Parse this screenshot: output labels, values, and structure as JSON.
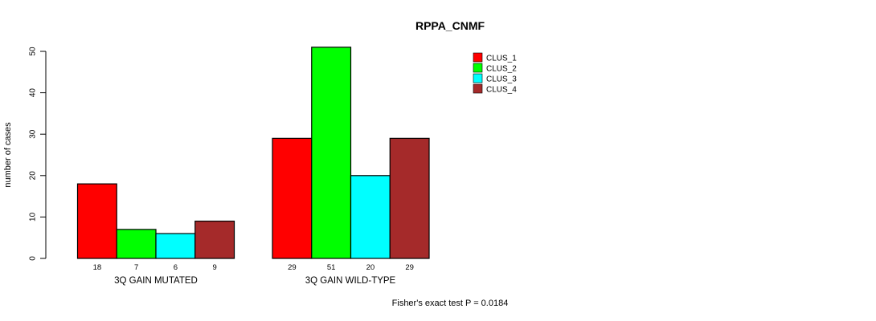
{
  "chart_data": {
    "type": "bar",
    "title": "RPPA_CNMF",
    "ylabel": "number of cases",
    "xlabel": "",
    "categories": [
      "3Q GAIN MUTATED",
      "3Q GAIN WILD-TYPE"
    ],
    "series": [
      {
        "name": "CLUS_1",
        "color": "#FF0000",
        "values": [
          18,
          29
        ]
      },
      {
        "name": "CLUS_2",
        "color": "#00FF00",
        "values": [
          7,
          51
        ]
      },
      {
        "name": "CLUS_3",
        "color": "#00FFFF",
        "values": [
          6,
          20
        ]
      },
      {
        "name": "CLUS_4",
        "color": "#A52A2A",
        "values": [
          9,
          29
        ]
      }
    ],
    "bar_value_labels": [
      [
        "18",
        "7",
        "6",
        "9"
      ],
      [
        "29",
        "51",
        "20",
        "29"
      ]
    ],
    "ylim": [
      0,
      50
    ],
    "yticks": [
      0,
      10,
      20,
      30,
      40,
      50
    ],
    "grid": false,
    "legend_position": "right-top",
    "bar_border_color": "#000000",
    "annotation": "Fisher's exact test P = 0.0184"
  }
}
